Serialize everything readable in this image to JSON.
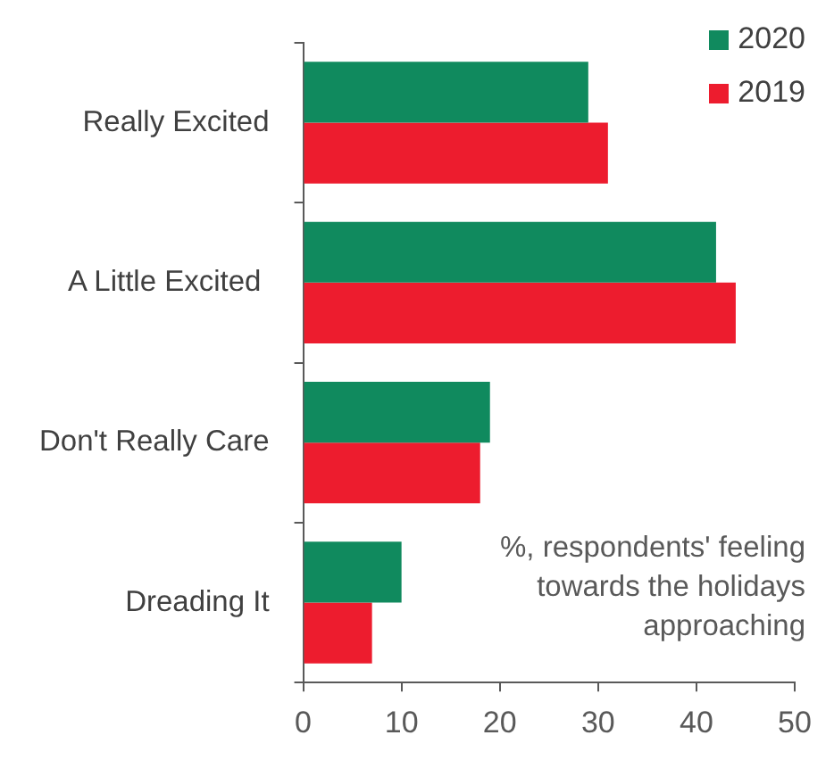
{
  "chart_data": {
    "type": "bar",
    "orientation": "horizontal",
    "categories": [
      "Really Excited",
      "A Little Excited ",
      "Don't Really Care",
      "Dreading It"
    ],
    "series": [
      {
        "name": "2020",
        "color": "#108a5e",
        "values": [
          29,
          42,
          19,
          10
        ]
      },
      {
        "name": "2019",
        "color": "#ed1c2e",
        "values": [
          31,
          44,
          18,
          7
        ]
      }
    ],
    "xlim": [
      0,
      50
    ],
    "xticks": [
      0,
      10,
      20,
      30,
      40,
      50
    ],
    "grid": false,
    "legend": "top right",
    "annotations": [
      "%, respondents' feeling towards the holidays approaching"
    ]
  }
}
